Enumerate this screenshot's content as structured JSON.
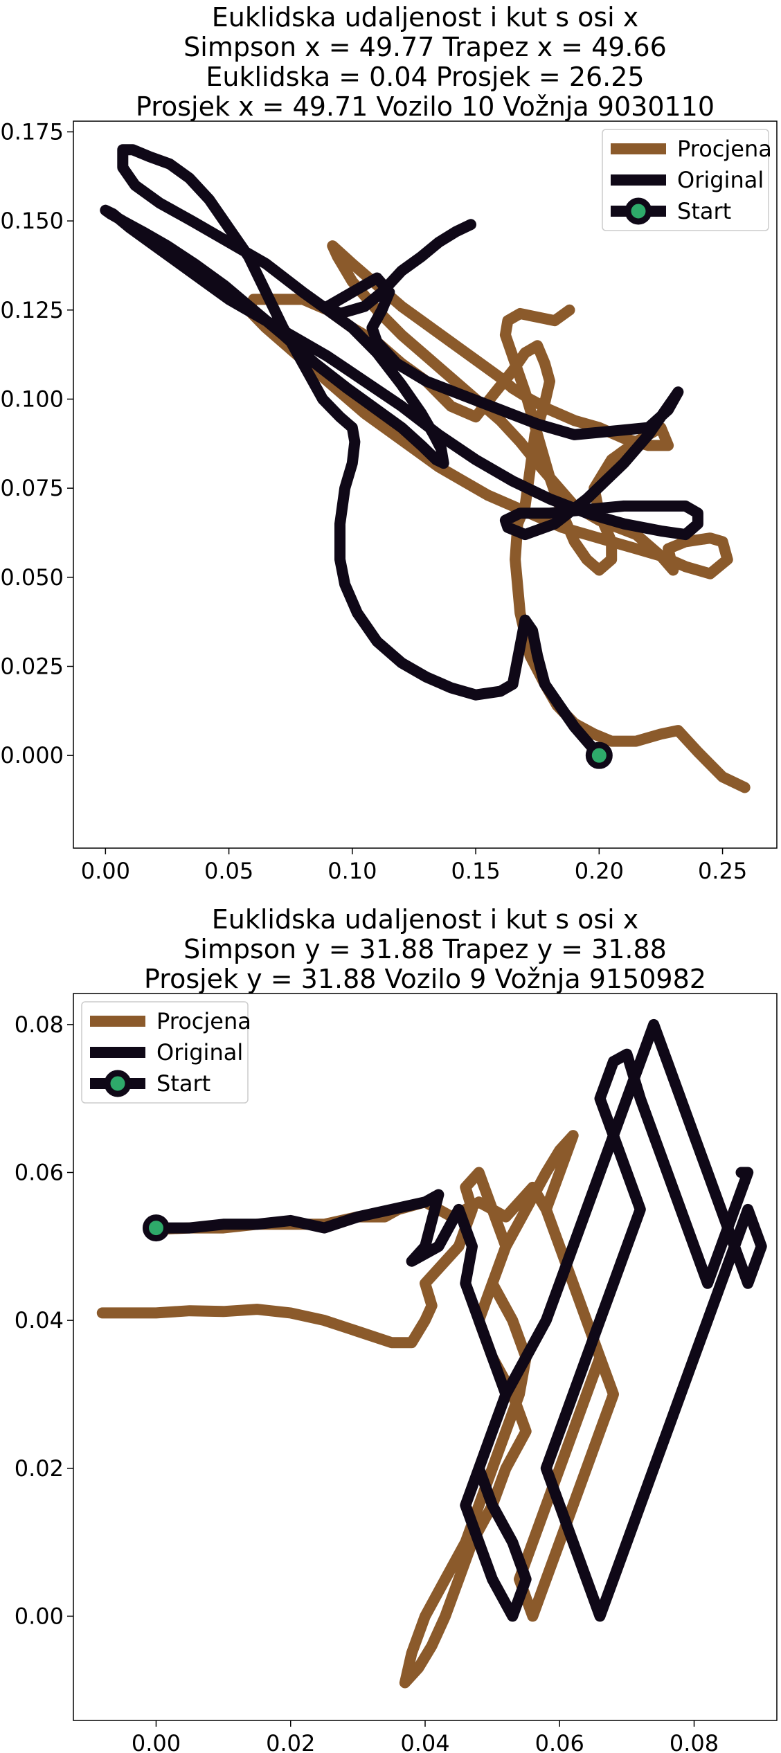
{
  "chart_data": [
    {
      "type": "line",
      "title": [
        "Euklidska udaljenost i kut s osi x",
        "Simpson x = 49.77 Trapez x = 49.66",
        "Euklidska = 0.04 Prosjek = 26.25",
        "Prosjek x = 49.71 Vozilo 10 Vožnja 9030110"
      ],
      "xlabel": "",
      "ylabel": "",
      "xlim": [
        -0.013,
        0.272
      ],
      "ylim": [
        -0.026,
        0.178
      ],
      "xticks": [
        "0.00",
        "0.05",
        "0.10",
        "0.15",
        "0.20",
        "0.25"
      ],
      "xtick_values": [
        0.0,
        0.05,
        0.1,
        0.15,
        0.2,
        0.25
      ],
      "yticks": [
        "0.000",
        "0.025",
        "0.050",
        "0.075",
        "0.100",
        "0.125",
        "0.150",
        "0.175"
      ],
      "ytick_values": [
        0.0,
        0.025,
        0.05,
        0.075,
        0.1,
        0.125,
        0.15,
        0.175
      ],
      "grid": false,
      "legend_position": "top-right",
      "legend": [
        "Procjena",
        "Original",
        "Start"
      ],
      "series": [
        {
          "name": "Procjena",
          "color": "#8B5A2B",
          "x": [
            0.259,
            0.25,
            0.24,
            0.232,
            0.225,
            0.215,
            0.205,
            0.198,
            0.19,
            0.183,
            0.178,
            0.172,
            0.168,
            0.166,
            0.167,
            0.17,
            0.172,
            0.174,
            0.178,
            0.18,
            0.178,
            0.175,
            0.17,
            0.165,
            0.158,
            0.15,
            0.14,
            0.13,
            0.12,
            0.11,
            0.1,
            0.09,
            0.08,
            0.07,
            0.06,
            0.058,
            0.065,
            0.075,
            0.085,
            0.095,
            0.105,
            0.115,
            0.125,
            0.135,
            0.145,
            0.155,
            0.165,
            0.175,
            0.185,
            0.195,
            0.205,
            0.215,
            0.225,
            0.235,
            0.245,
            0.252,
            0.25,
            0.245,
            0.235,
            0.228,
            0.23,
            0.225,
            0.215,
            0.2,
            0.19,
            0.185,
            0.18,
            0.175,
            0.168,
            0.16,
            0.15,
            0.14,
            0.13,
            0.12,
            0.11,
            0.1,
            0.094,
            0.092,
            0.1,
            0.11,
            0.12,
            0.13,
            0.14,
            0.15,
            0.16,
            0.165,
            0.172,
            0.18,
            0.19,
            0.2,
            0.21,
            0.22,
            0.228,
            0.225,
            0.215,
            0.205,
            0.198,
            0.2,
            0.205,
            0.205,
            0.2,
            0.195,
            0.19,
            0.185,
            0.18,
            0.175,
            0.17,
            0.165,
            0.162,
            0.163,
            0.168,
            0.175,
            0.182,
            0.188
          ],
          "y": [
            -0.009,
            -0.006,
            0.001,
            0.007,
            0.006,
            0.004,
            0.004,
            0.006,
            0.009,
            0.014,
            0.02,
            0.028,
            0.04,
            0.055,
            0.065,
            0.07,
            0.08,
            0.09,
            0.099,
            0.105,
            0.11,
            0.115,
            0.113,
            0.108,
            0.102,
            0.095,
            0.098,
            0.105,
            0.11,
            0.116,
            0.12,
            0.125,
            0.128,
            0.128,
            0.128,
            0.125,
            0.12,
            0.114,
            0.108,
            0.102,
            0.096,
            0.091,
            0.086,
            0.081,
            0.077,
            0.073,
            0.07,
            0.067,
            0.064,
            0.062,
            0.06,
            0.058,
            0.056,
            0.053,
            0.051,
            0.055,
            0.06,
            0.061,
            0.06,
            0.058,
            0.052,
            0.056,
            0.062,
            0.066,
            0.07,
            0.074,
            0.078,
            0.082,
            0.088,
            0.094,
            0.1,
            0.106,
            0.112,
            0.118,
            0.125,
            0.133,
            0.14,
            0.143,
            0.138,
            0.132,
            0.126,
            0.121,
            0.116,
            0.111,
            0.106,
            0.103,
            0.1,
            0.097,
            0.094,
            0.092,
            0.089,
            0.087,
            0.087,
            0.092,
            0.088,
            0.083,
            0.075,
            0.068,
            0.06,
            0.055,
            0.052,
            0.055,
            0.06,
            0.068,
            0.078,
            0.09,
            0.102,
            0.112,
            0.118,
            0.122,
            0.124,
            0.123,
            0.122,
            0.125
          ]
        },
        {
          "name": "Original",
          "color": "#0F0817",
          "x": [
            0.2,
            0.19,
            0.183,
            0.178,
            0.175,
            0.173,
            0.17,
            0.165,
            0.16,
            0.15,
            0.14,
            0.13,
            0.12,
            0.11,
            0.102,
            0.097,
            0.095,
            0.095,
            0.097,
            0.1,
            0.101,
            0.1,
            0.095,
            0.088,
            0.08,
            0.072,
            0.065,
            0.058,
            0.05,
            0.042,
            0.034,
            0.026,
            0.018,
            0.011,
            0.007,
            0.007,
            0.012,
            0.022,
            0.035,
            0.05,
            0.065,
            0.08,
            0.09,
            0.1,
            0.11,
            0.12,
            0.128,
            0.133,
            0.136,
            0.137,
            0.134,
            0.128,
            0.12,
            0.11,
            0.098,
            0.085,
            0.072,
            0.06,
            0.048,
            0.036,
            0.025,
            0.015,
            0.007,
            0.002,
            0.0,
            0.003,
            0.01,
            0.02,
            0.03,
            0.04,
            0.05,
            0.06,
            0.075,
            0.09,
            0.105,
            0.12,
            0.135,
            0.15,
            0.165,
            0.18,
            0.195,
            0.21,
            0.225,
            0.235,
            0.24,
            0.24,
            0.235,
            0.225,
            0.21,
            0.195,
            0.18,
            0.168,
            0.162,
            0.163,
            0.17,
            0.182,
            0.195,
            0.21,
            0.22,
            0.225,
            0.23,
            0.232,
            0.228,
            0.22,
            0.205,
            0.19,
            0.175,
            0.16,
            0.145,
            0.13,
            0.118,
            0.11,
            0.108,
            0.112,
            0.115,
            0.11,
            0.1,
            0.09,
            0.095,
            0.105,
            0.112,
            0.12,
            0.128,
            0.135,
            0.142,
            0.148
          ],
          "y": [
            0.0,
            0.008,
            0.015,
            0.02,
            0.028,
            0.035,
            0.038,
            0.02,
            0.018,
            0.017,
            0.019,
            0.022,
            0.026,
            0.032,
            0.04,
            0.048,
            0.055,
            0.065,
            0.075,
            0.082,
            0.088,
            0.092,
            0.095,
            0.1,
            0.11,
            0.12,
            0.13,
            0.14,
            0.148,
            0.156,
            0.162,
            0.166,
            0.168,
            0.17,
            0.17,
            0.165,
            0.16,
            0.155,
            0.15,
            0.144,
            0.138,
            0.13,
            0.125,
            0.12,
            0.113,
            0.104,
            0.096,
            0.09,
            0.086,
            0.082,
            0.083,
            0.087,
            0.092,
            0.097,
            0.103,
            0.11,
            0.118,
            0.125,
            0.132,
            0.138,
            0.143,
            0.147,
            0.15,
            0.152,
            0.153,
            0.152,
            0.148,
            0.143,
            0.138,
            0.133,
            0.128,
            0.124,
            0.118,
            0.112,
            0.105,
            0.098,
            0.09,
            0.083,
            0.077,
            0.072,
            0.068,
            0.065,
            0.063,
            0.062,
            0.065,
            0.068,
            0.07,
            0.07,
            0.07,
            0.069,
            0.068,
            0.068,
            0.066,
            0.064,
            0.062,
            0.065,
            0.072,
            0.082,
            0.09,
            0.095,
            0.1,
            0.102,
            0.097,
            0.092,
            0.091,
            0.09,
            0.093,
            0.097,
            0.101,
            0.105,
            0.11,
            0.116,
            0.12,
            0.125,
            0.13,
            0.134,
            0.13,
            0.126,
            0.124,
            0.126,
            0.13,
            0.136,
            0.14,
            0.144,
            0.147,
            0.149
          ]
        }
      ],
      "start": {
        "x": 0.2,
        "y": 0.0,
        "marker_edge_color": "#0F0817",
        "marker_face_color": "#2EAA6A"
      }
    },
    {
      "type": "line",
      "title": [
        "Euklidska udaljenost i kut s osi x",
        "Simpson y = 31.88 Trapez y = 31.88",
        "Prosjek y = 31.88 Vozilo 9 Vožnja 9150982"
      ],
      "xlabel": "",
      "ylabel": "",
      "xlim": [
        -0.0123,
        0.0923
      ],
      "ylim": [
        -0.0141,
        0.0842
      ],
      "xticks": [
        "0.00",
        "0.02",
        "0.04",
        "0.06",
        "0.08"
      ],
      "xtick_values": [
        0.0,
        0.02,
        0.04,
        0.06,
        0.08
      ],
      "yticks": [
        "0.00",
        "0.02",
        "0.04",
        "0.06",
        "0.08"
      ],
      "ytick_values": [
        0.0,
        0.02,
        0.04,
        0.06,
        0.08
      ],
      "grid": false,
      "legend_position": "top-left",
      "legend": [
        "Procjena",
        "Original",
        "Start"
      ],
      "series": [
        {
          "name": "Procjena",
          "color": "#8B5A2B",
          "x": [
            -0.008,
            -0.004,
            0.0,
            0.005,
            0.01,
            0.015,
            0.02,
            0.025,
            0.03,
            0.035,
            0.038,
            0.04,
            0.041,
            0.04,
            0.042,
            0.045,
            0.047,
            0.046,
            0.048,
            0.05,
            0.052,
            0.05,
            0.048,
            0.05,
            0.053,
            0.055,
            0.052,
            0.05,
            0.047,
            0.045,
            0.043,
            0.041,
            0.039,
            0.037,
            0.038,
            0.04,
            0.043,
            0.046,
            0.048,
            0.05,
            0.052,
            0.054,
            0.055,
            0.053,
            0.05,
            0.052,
            0.055,
            0.058,
            0.06,
            0.062,
            0.06,
            0.058,
            0.06,
            0.062,
            0.064,
            0.066,
            0.064,
            0.062,
            0.06,
            0.058,
            0.056,
            0.054,
            0.056,
            0.058,
            0.06,
            0.062,
            0.064,
            0.066,
            0.068,
            0.066,
            0.064,
            0.062,
            0.06,
            0.058,
            0.056,
            0.054,
            0.052,
            0.05,
            0.048,
            0.046,
            0.044,
            0.042,
            0.04,
            0.038,
            0.036,
            0.034,
            0.032,
            0.03,
            0.025,
            0.02,
            0.015,
            0.01,
            0.005,
            0.0
          ],
          "y": [
            0.041,
            0.041,
            0.041,
            0.0413,
            0.0412,
            0.0415,
            0.041,
            0.04,
            0.0385,
            0.037,
            0.037,
            0.04,
            0.042,
            0.045,
            0.047,
            0.05,
            0.055,
            0.058,
            0.06,
            0.055,
            0.05,
            0.045,
            0.04,
            0.035,
            0.03,
            0.025,
            0.02,
            0.015,
            0.01,
            0.005,
            0.0,
            -0.004,
            -0.007,
            -0.009,
            -0.005,
            0.0,
            0.005,
            0.01,
            0.015,
            0.02,
            0.025,
            0.03,
            0.035,
            0.04,
            0.045,
            0.05,
            0.055,
            0.06,
            0.063,
            0.065,
            0.06,
            0.055,
            0.05,
            0.045,
            0.04,
            0.035,
            0.03,
            0.025,
            0.02,
            0.015,
            0.01,
            0.005,
            0.0,
            0.005,
            0.01,
            0.015,
            0.02,
            0.025,
            0.03,
            0.035,
            0.04,
            0.045,
            0.05,
            0.055,
            0.058,
            0.056,
            0.054,
            0.055,
            0.056,
            0.055,
            0.054,
            0.055,
            0.056,
            0.0555,
            0.055,
            0.054,
            0.054,
            0.054,
            0.053,
            0.053,
            0.053,
            0.0525,
            0.0525,
            0.0523
          ]
        },
        {
          "name": "Original",
          "color": "#0F0817",
          "x": [
            0.0,
            0.005,
            0.01,
            0.015,
            0.02,
            0.025,
            0.03,
            0.035,
            0.04,
            0.042,
            0.04,
            0.038,
            0.042,
            0.045,
            0.047,
            0.046,
            0.048,
            0.05,
            0.052,
            0.05,
            0.048,
            0.05,
            0.053,
            0.055,
            0.053,
            0.05,
            0.048,
            0.046,
            0.048,
            0.05,
            0.052,
            0.055,
            0.058,
            0.06,
            0.062,
            0.064,
            0.066,
            0.068,
            0.07,
            0.072,
            0.074,
            0.076,
            0.078,
            0.08,
            0.082,
            0.084,
            0.086,
            0.088,
            0.09,
            0.088,
            0.086,
            0.084,
            0.082,
            0.08,
            0.078,
            0.076,
            0.074,
            0.072,
            0.07,
            0.068,
            0.066,
            0.064,
            0.062,
            0.06,
            0.058,
            0.06,
            0.062,
            0.064,
            0.066,
            0.068,
            0.07,
            0.072,
            0.07,
            0.068,
            0.066,
            0.068,
            0.07,
            0.072,
            0.074,
            0.076,
            0.078,
            0.08,
            0.082,
            0.084,
            0.086,
            0.088,
            0.087
          ],
          "y": [
            0.0525,
            0.0525,
            0.053,
            0.053,
            0.0535,
            0.0525,
            0.054,
            0.055,
            0.056,
            0.057,
            0.05,
            0.048,
            0.05,
            0.055,
            0.05,
            0.045,
            0.04,
            0.035,
            0.03,
            0.025,
            0.02,
            0.015,
            0.01,
            0.005,
            0.0,
            0.005,
            0.01,
            0.015,
            0.02,
            0.025,
            0.03,
            0.035,
            0.04,
            0.045,
            0.05,
            0.055,
            0.06,
            0.065,
            0.07,
            0.075,
            0.08,
            0.075,
            0.07,
            0.065,
            0.06,
            0.055,
            0.05,
            0.045,
            0.05,
            0.055,
            0.05,
            0.045,
            0.04,
            0.035,
            0.03,
            0.025,
            0.02,
            0.015,
            0.01,
            0.005,
            0.0,
            0.005,
            0.01,
            0.015,
            0.02,
            0.025,
            0.03,
            0.035,
            0.04,
            0.045,
            0.05,
            0.055,
            0.06,
            0.065,
            0.07,
            0.075,
            0.076,
            0.07,
            0.065,
            0.06,
            0.055,
            0.05,
            0.045,
            0.05,
            0.055,
            0.06,
            0.06
          ]
        }
      ],
      "start": {
        "x": 0.0,
        "y": 0.0525,
        "marker_edge_color": "#0F0817",
        "marker_face_color": "#2EAA6A"
      }
    }
  ]
}
